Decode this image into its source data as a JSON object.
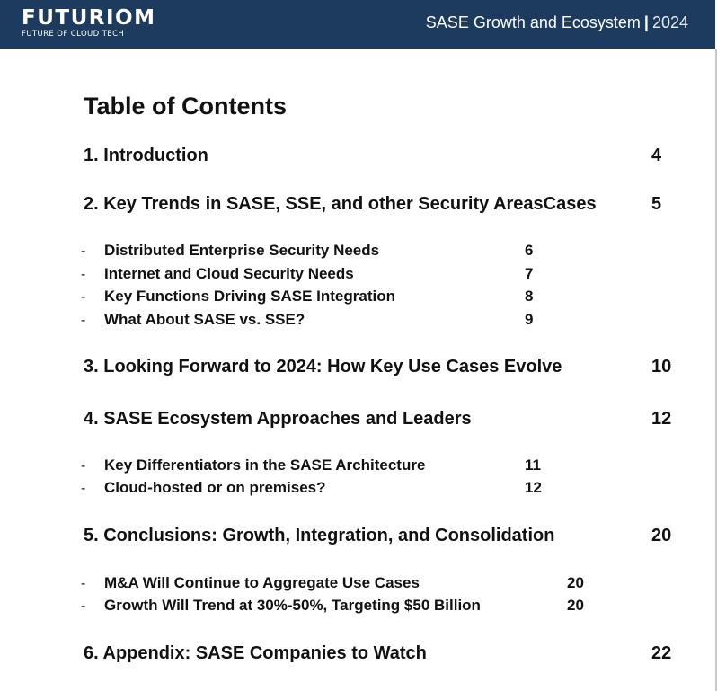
{
  "header": {
    "logo_name": "FUTURIOM",
    "logo_tagline": "FUTURE OF CLOUD TECH",
    "report_title": "SASE Growth and Ecosystem",
    "separator": "|",
    "year": "2024"
  },
  "toc": {
    "title": "Table of Contents",
    "sections": [
      {
        "label": "1. Introduction",
        "page": "4"
      },
      {
        "label": "2. Key Trends in SASE, SSE, and other Security AreasCases",
        "page": "5"
      },
      {
        "label": "3. Looking Forward to 2024: How Key Use Cases Evolve",
        "page": "10"
      },
      {
        "label": "4. SASE Ecosystem Approaches and Leaders",
        "page": "12"
      },
      {
        "label": "5. Conclusions: Growth, Integration, and Consolidation",
        "page": "20"
      },
      {
        "label": "6. Appendix: SASE Companies to Watch",
        "page": "22"
      }
    ],
    "subsections": [
      {
        "bullet": "-",
        "label": "Distributed Enterprise Security Needs",
        "page": "6"
      },
      {
        "bullet": "-",
        "label": "Internet and Cloud Security Needs",
        "page": "7"
      },
      {
        "bullet": "-",
        "label": "Key Functions Driving SASE Integration",
        "page": "8"
      },
      {
        "bullet": "-",
        "label": "What About SASE vs. SSE?",
        "page": "9"
      },
      {
        "bullet": "-",
        "label": "Key Differentiators in the SASE Architecture",
        "page": "11"
      },
      {
        "bullet": "-",
        "label": "Cloud-hosted or on premises?",
        "page": "12"
      },
      {
        "bullet": "-",
        "label": "M&A Will Continue to Aggregate Use Cases",
        "page": "20"
      },
      {
        "bullet": "-",
        "label": "Growth Will Trend at 30%-50%, Targeting $50 Billion",
        "page": "20"
      }
    ]
  },
  "colors": {
    "header_bg": "#1d3b5e",
    "header_text": "#ffffff",
    "body_text": "#111111"
  }
}
